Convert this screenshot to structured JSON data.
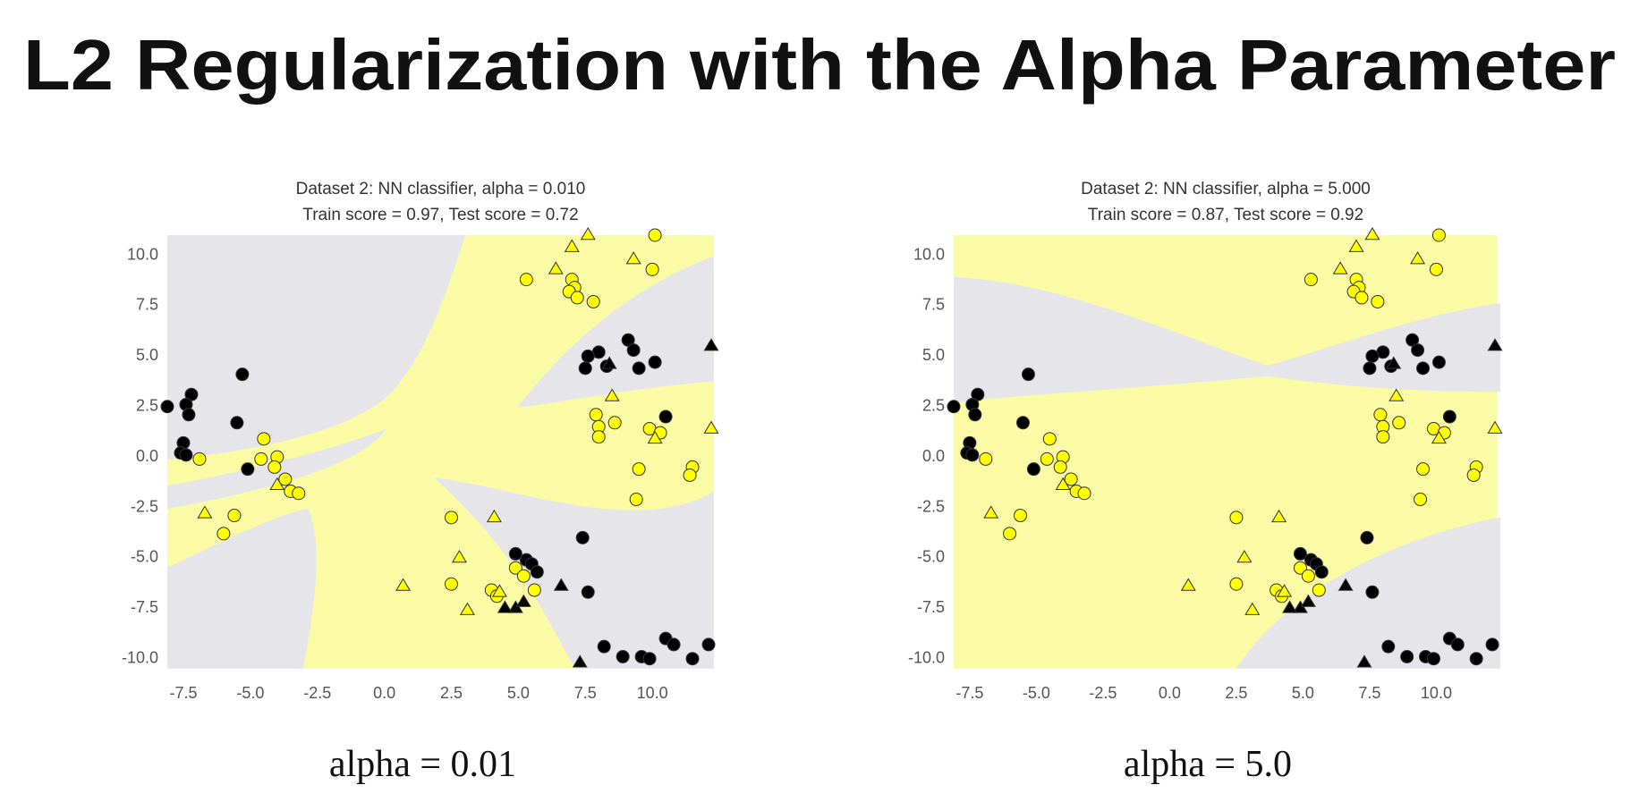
{
  "slide_title": "L2 Regularization with the Alpha Parameter",
  "chart_data": [
    {
      "type": "scatter",
      "title": "Dataset 2: NN classifier, alpha = 0.010",
      "subtitle": "Train score = 0.97, Test score = 0.72",
      "caption": "alpha = 0.01",
      "xlim": [
        -8.1,
        12.3
      ],
      "ylim": [
        -10.5,
        11.0
      ],
      "xticks": [
        {
          "value": -7.5,
          "label": "-7.5"
        },
        {
          "value": -5,
          "label": "-5.0"
        },
        {
          "value": -2.5,
          "label": "-2.5"
        },
        {
          "value": 0,
          "label": "0.0"
        },
        {
          "value": 2.5,
          "label": "2.5"
        },
        {
          "value": 5,
          "label": "5.0"
        },
        {
          "value": 7.5,
          "label": "7.5"
        },
        {
          "value": 10,
          "label": "10.0"
        }
      ],
      "yticks": [
        {
          "value": -10,
          "label": "-10.0"
        },
        {
          "value": -7.5,
          "label": "-7.5"
        },
        {
          "value": -5,
          "label": "-5.0"
        },
        {
          "value": -2.5,
          "label": "-2.5"
        },
        {
          "value": 0,
          "label": "0.0"
        },
        {
          "value": 2.5,
          "label": "2.5"
        },
        {
          "value": 5,
          "label": "5.0"
        },
        {
          "value": 7.5,
          "label": "7.5"
        },
        {
          "value": 10,
          "label": "10.0"
        }
      ],
      "series": [
        {
          "color": "#000000",
          "marker": "circle",
          "x": [
            -8.1,
            -7.2,
            -7.4,
            -7.3,
            -7.5,
            -7.6,
            -7.4,
            -5.3,
            -5.5,
            -5.1,
            4.9,
            5.3,
            5.5,
            5.7,
            7.4,
            7.6,
            8.2,
            8.9,
            9.6,
            9.9,
            10.5,
            10.8,
            11.5,
            12.1,
            9.1,
            9.3,
            8.0,
            7.6,
            7.5,
            8.3,
            9.5,
            10.1,
            10.5
          ],
          "values": [
            2.5,
            3.1,
            2.6,
            2.1,
            0.7,
            0.2,
            0.1,
            4.1,
            1.7,
            -0.6,
            -4.8,
            -5.1,
            -5.3,
            -5.7,
            -4.0,
            -6.7,
            -9.4,
            -9.9,
            -9.9,
            -10.0,
            -9.0,
            -9.3,
            -10.0,
            -9.3,
            5.8,
            5.3,
            5.2,
            5.0,
            4.4,
            4.5,
            4.4,
            4.7,
            2.0
          ]
        },
        {
          "color": "#ffff00",
          "marker": "circle",
          "x": [
            -6.9,
            -4.5,
            -4.6,
            -4.0,
            -4.1,
            -3.7,
            -3.5,
            -3.2,
            -5.6,
            -6.0,
            2.5,
            2.5,
            4.0,
            4.2,
            4.9,
            5.2,
            5.6,
            5.3,
            7.0,
            7.1,
            6.9,
            7.2,
            7.8,
            10.1,
            10.0,
            7.9,
            8.0,
            8.0,
            8.6,
            9.9,
            10.3,
            11.5,
            11.4,
            9.5,
            9.4
          ],
          "values": [
            -0.1,
            0.9,
            -0.1,
            0.0,
            -0.5,
            -1.1,
            -1.7,
            -1.8,
            -2.9,
            -3.8,
            -3.0,
            -6.3,
            -6.6,
            -6.9,
            -5.5,
            -5.9,
            -6.6,
            8.8,
            8.8,
            8.4,
            8.2,
            7.9,
            7.7,
            11.0,
            9.3,
            2.1,
            1.5,
            1.0,
            1.7,
            1.4,
            1.2,
            -0.5,
            -0.9,
            -0.6,
            -2.1
          ]
        },
        {
          "color": "#000000",
          "marker": "triangle",
          "x": [
            8.4,
            4.9,
            4.5,
            5.2,
            6.6,
            12.2,
            7.3
          ],
          "values": [
            4.6,
            -7.5,
            -7.5,
            -7.2,
            -6.4,
            5.5,
            -10.2
          ]
        },
        {
          "color": "#ffff00",
          "marker": "triangle",
          "x": [
            7.0,
            7.6,
            9.3,
            6.4,
            8.5,
            10.1,
            12.2,
            -6.7,
            -4.0,
            4.1,
            2.8,
            0.7,
            3.1,
            4.3
          ],
          "values": [
            10.4,
            11.0,
            9.8,
            9.3,
            3.0,
            0.9,
            1.4,
            -2.8,
            -1.4,
            -3.0,
            -5.0,
            -6.4,
            -7.6,
            -6.7
          ]
        }
      ]
    },
    {
      "type": "scatter",
      "title": "Dataset 2: NN classifier, alpha = 5.000",
      "subtitle": "Train score = 0.87, Test score = 0.92",
      "caption": "alpha = 5.0",
      "xlim": [
        -8.1,
        12.3
      ],
      "ylim": [
        -10.5,
        11.0
      ],
      "xticks": [
        {
          "value": -7.5,
          "label": "-7.5"
        },
        {
          "value": -5,
          "label": "-5.0"
        },
        {
          "value": -2.5,
          "label": "-2.5"
        },
        {
          "value": 0,
          "label": "0.0"
        },
        {
          "value": 2.5,
          "label": "2.5"
        },
        {
          "value": 5,
          "label": "5.0"
        },
        {
          "value": 7.5,
          "label": "7.5"
        },
        {
          "value": 10,
          "label": "10.0"
        }
      ],
      "yticks": [
        {
          "value": -10,
          "label": "-10.0"
        },
        {
          "value": -7.5,
          "label": "-7.5"
        },
        {
          "value": -5,
          "label": "-5.0"
        },
        {
          "value": -2.5,
          "label": "-2.5"
        },
        {
          "value": 0,
          "label": "0.0"
        },
        {
          "value": 2.5,
          "label": "2.5"
        },
        {
          "value": 5,
          "label": "5.0"
        },
        {
          "value": 7.5,
          "label": "7.5"
        },
        {
          "value": 10,
          "label": "10.0"
        }
      ],
      "series": [
        {
          "color": "#000000",
          "marker": "circle",
          "x": [
            -8.1,
            -7.2,
            -7.4,
            -7.3,
            -7.5,
            -7.6,
            -7.4,
            -5.3,
            -5.5,
            -5.1,
            4.9,
            5.3,
            5.5,
            5.7,
            7.4,
            7.6,
            8.2,
            8.9,
            9.6,
            9.9,
            10.5,
            10.8,
            11.5,
            12.1,
            9.1,
            9.3,
            8.0,
            7.6,
            7.5,
            8.3,
            9.5,
            10.1,
            10.5
          ],
          "values": [
            2.5,
            3.1,
            2.6,
            2.1,
            0.7,
            0.2,
            0.1,
            4.1,
            1.7,
            -0.6,
            -4.8,
            -5.1,
            -5.3,
            -5.7,
            -4.0,
            -6.7,
            -9.4,
            -9.9,
            -9.9,
            -10.0,
            -9.0,
            -9.3,
            -10.0,
            -9.3,
            5.8,
            5.3,
            5.2,
            5.0,
            4.4,
            4.5,
            4.4,
            4.7,
            2.0
          ]
        },
        {
          "color": "#ffff00",
          "marker": "circle",
          "x": [
            -6.9,
            -4.5,
            -4.6,
            -4.0,
            -4.1,
            -3.7,
            -3.5,
            -3.2,
            -5.6,
            -6.0,
            2.5,
            2.5,
            4.0,
            4.2,
            4.9,
            5.2,
            5.6,
            5.3,
            7.0,
            7.1,
            6.9,
            7.2,
            7.8,
            10.1,
            10.0,
            7.9,
            8.0,
            8.0,
            8.6,
            9.9,
            10.3,
            11.5,
            11.4,
            9.5,
            9.4
          ],
          "values": [
            -0.1,
            0.9,
            -0.1,
            0.0,
            -0.5,
            -1.1,
            -1.7,
            -1.8,
            -2.9,
            -3.8,
            -3.0,
            -6.3,
            -6.6,
            -6.9,
            -5.5,
            -5.9,
            -6.6,
            8.8,
            8.8,
            8.4,
            8.2,
            7.9,
            7.7,
            11.0,
            9.3,
            2.1,
            1.5,
            1.0,
            1.7,
            1.4,
            1.2,
            -0.5,
            -0.9,
            -0.6,
            -2.1
          ]
        },
        {
          "color": "#000000",
          "marker": "triangle",
          "x": [
            8.4,
            4.9,
            4.5,
            5.2,
            6.6,
            12.2,
            7.3
          ],
          "values": [
            4.6,
            -7.5,
            -7.5,
            -7.2,
            -6.4,
            5.5,
            -10.2
          ]
        },
        {
          "color": "#ffff00",
          "marker": "triangle",
          "x": [
            7.0,
            7.6,
            9.3,
            6.4,
            8.5,
            10.1,
            12.2,
            -6.7,
            -4.0,
            4.1,
            2.8,
            0.7,
            3.1,
            4.3
          ],
          "values": [
            10.4,
            11.0,
            9.8,
            9.3,
            3.0,
            0.9,
            1.4,
            -2.8,
            -1.4,
            -3.0,
            -5.0,
            -6.4,
            -7.6,
            -6.7
          ]
        }
      ]
    }
  ]
}
